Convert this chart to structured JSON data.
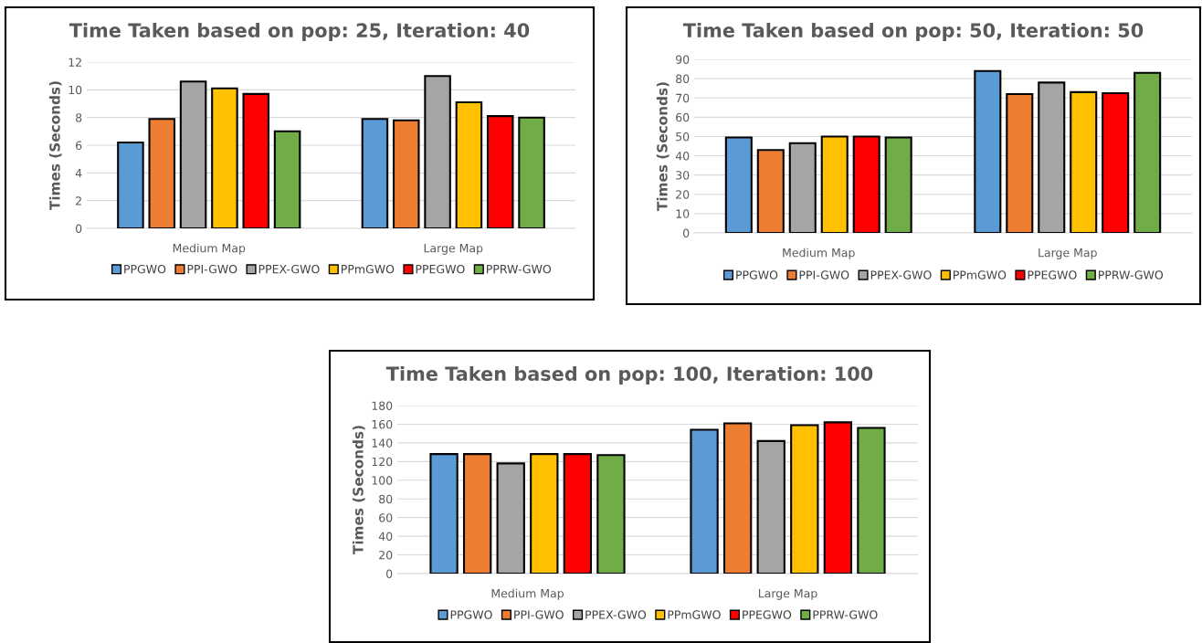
{
  "chart_data": [
    {
      "type": "bar",
      "title": "Time Taken based on pop: 25, Iteration: 40",
      "ylabel": "Times (Seconds)",
      "categories": [
        "Medium Map",
        "Large Map"
      ],
      "ylim": [
        0,
        12
      ],
      "yticks": [
        0,
        2,
        4,
        6,
        8,
        10,
        12
      ],
      "grid": "y",
      "legend": "bottom",
      "series": [
        {
          "name": "PPGWO",
          "color": "#5b9bd5",
          "values": [
            6.2,
            7.9
          ]
        },
        {
          "name": "PPI-GWO",
          "color": "#ed7d31",
          "values": [
            7.9,
            7.8
          ]
        },
        {
          "name": "PPEX-GWO",
          "color": "#a5a5a5",
          "values": [
            10.6,
            11.0
          ]
        },
        {
          "name": "PPmGWO",
          "color": "#ffc000",
          "values": [
            10.1,
            9.1
          ]
        },
        {
          "name": "PPEGWO",
          "color": "#ff0000",
          "values": [
            9.7,
            8.1
          ]
        },
        {
          "name": "PPRW-GWO",
          "color": "#70ad47",
          "values": [
            7.0,
            8.0
          ]
        }
      ]
    },
    {
      "type": "bar",
      "title": "Time Taken based on pop: 50, Iteration: 50",
      "ylabel": "Times (Seconds)",
      "categories": [
        "Medium Map",
        "Large Map"
      ],
      "ylim": [
        0,
        90
      ],
      "yticks": [
        0,
        10,
        20,
        30,
        40,
        50,
        60,
        70,
        80,
        90
      ],
      "grid": "y",
      "legend": "bottom",
      "series": [
        {
          "name": "PPGWO",
          "color": "#5b9bd5",
          "values": [
            49.5,
            84
          ]
        },
        {
          "name": "PPI-GWO",
          "color": "#ed7d31",
          "values": [
            43,
            72
          ]
        },
        {
          "name": "PPEX-GWO",
          "color": "#a5a5a5",
          "values": [
            46.5,
            78
          ]
        },
        {
          "name": "PPmGWO",
          "color": "#ffc000",
          "values": [
            50,
            73
          ]
        },
        {
          "name": "PPEGWO",
          "color": "#ff0000",
          "values": [
            50,
            72.5
          ]
        },
        {
          "name": "PPRW-GWO",
          "color": "#70ad47",
          "values": [
            49.5,
            83
          ]
        }
      ]
    },
    {
      "type": "bar",
      "title": "Time Taken based on pop: 100, Iteration: 100",
      "ylabel": "Times (Seconds)",
      "categories": [
        "Medium Map",
        "Large Map"
      ],
      "ylim": [
        0,
        180
      ],
      "yticks": [
        0,
        20,
        40,
        60,
        80,
        100,
        120,
        140,
        160,
        180
      ],
      "grid": "y",
      "legend": "bottom",
      "series": [
        {
          "name": "PPGWO",
          "color": "#5b9bd5",
          "values": [
            128,
            154
          ]
        },
        {
          "name": "PPI-GWO",
          "color": "#ed7d31",
          "values": [
            128,
            161
          ]
        },
        {
          "name": "PPEX-GWO",
          "color": "#a5a5a5",
          "values": [
            118,
            142
          ]
        },
        {
          "name": "PPmGWO",
          "color": "#ffc000",
          "values": [
            128,
            159
          ]
        },
        {
          "name": "PPEGWO",
          "color": "#ff0000",
          "values": [
            128,
            162
          ]
        },
        {
          "name": "PPRW-GWO",
          "color": "#70ad47",
          "values": [
            127,
            156
          ]
        }
      ]
    }
  ]
}
